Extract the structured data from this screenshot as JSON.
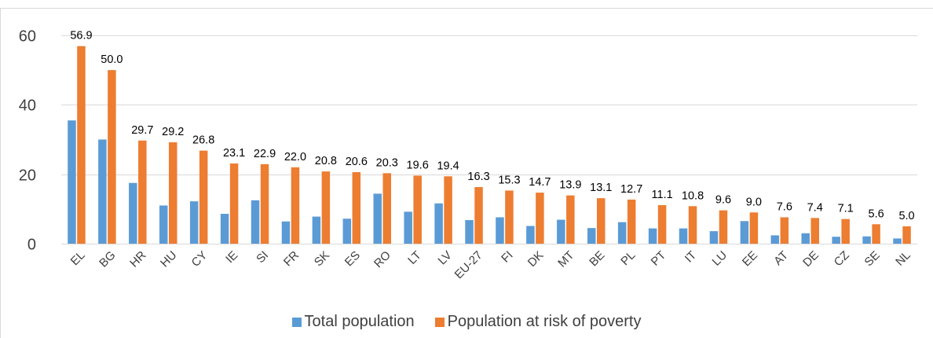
{
  "chart_data": {
    "type": "bar",
    "categories": [
      "EL",
      "BG",
      "HR",
      "HU",
      "CY",
      "IE",
      "SI",
      "FR",
      "SK",
      "ES",
      "RO",
      "LT",
      "LV",
      "EU-27",
      "FI",
      "DK",
      "MT",
      "BE",
      "PL",
      "PT",
      "IT",
      "LU",
      "EE",
      "AT",
      "DE",
      "CZ",
      "SE",
      "NL"
    ],
    "series": [
      {
        "name": "Total population",
        "color": "#5B9BD5",
        "values": [
          35.5,
          30.0,
          17.5,
          11.0,
          12.2,
          8.6,
          12.5,
          6.4,
          7.8,
          7.2,
          14.4,
          9.2,
          11.6,
          6.8,
          7.6,
          5.1,
          6.9,
          4.5,
          6.2,
          4.4,
          4.4,
          3.6,
          6.5,
          2.4,
          3.0,
          2.0,
          2.1,
          1.5
        ]
      },
      {
        "name": "Population at risk of poverty",
        "color": "#ED7D31",
        "values": [
          56.9,
          50.0,
          29.7,
          29.2,
          26.8,
          23.1,
          22.9,
          22.0,
          20.8,
          20.6,
          20.3,
          19.6,
          19.4,
          16.3,
          15.3,
          14.7,
          13.9,
          13.1,
          12.7,
          11.1,
          10.8,
          9.6,
          9.0,
          7.6,
          7.4,
          7.1,
          5.6,
          5.0
        ]
      }
    ],
    "data_labels": [
      "56.9",
      "50.0",
      "29.7",
      "29.2",
      "26.8",
      "23.1",
      "22.9",
      "22.0",
      "20.8",
      "20.6",
      "20.3",
      "19.6",
      "19.4",
      "16.3",
      "15.3",
      "14.7",
      "13.9",
      "13.1",
      "12.7",
      "11.1",
      "10.8",
      "9.6",
      "9.0",
      "7.6",
      "7.4",
      "7.1",
      "5.6",
      "5.0"
    ],
    "yticks": [
      "0",
      "20",
      "40",
      "60"
    ],
    "ylim": [
      0,
      60
    ],
    "grid": true,
    "legend_position": "bottom",
    "title": "",
    "xlabel": "",
    "ylabel": ""
  },
  "legend": {
    "total_label": "Total population",
    "poverty_label": "Population at risk of poverty",
    "total_color": "#5B9BD5",
    "poverty_color": "#ED7D31"
  }
}
